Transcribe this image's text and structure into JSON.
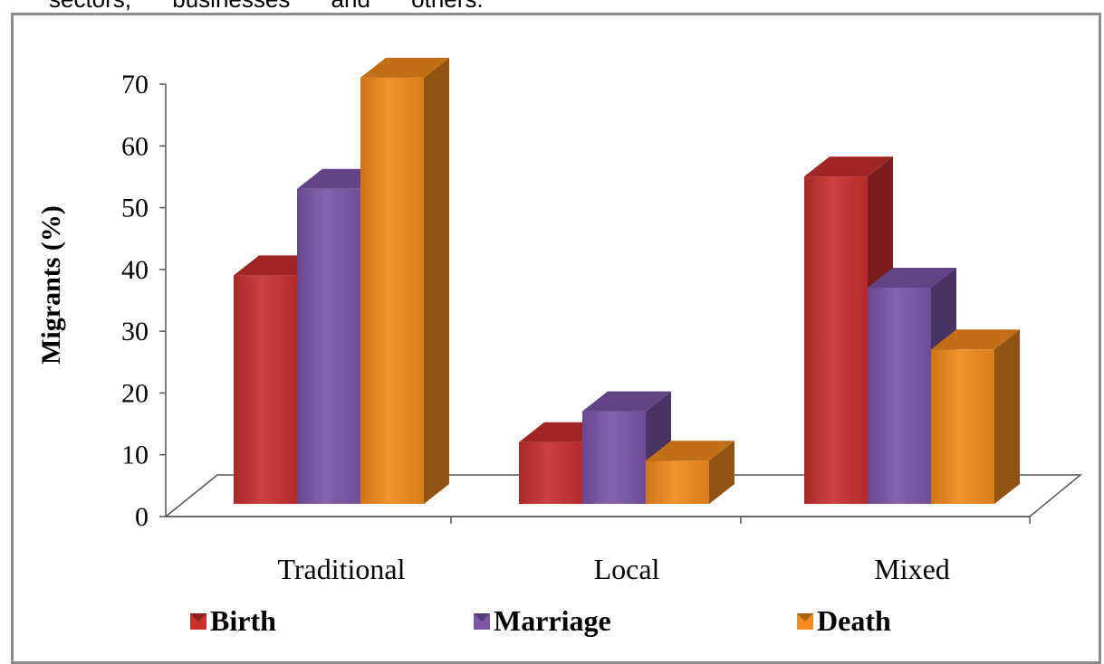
{
  "header": {
    "text": "sectors, businesses and others."
  },
  "chart_data": {
    "type": "bar",
    "categories": [
      "Traditional",
      "Local",
      "Mixed"
    ],
    "series": [
      {
        "name": "Birth",
        "values": [
          37,
          10,
          53
        ],
        "color": "#c8302e"
      },
      {
        "name": "Marriage",
        "values": [
          51,
          15,
          35
        ],
        "color": "#7a55a8"
      },
      {
        "name": "Death",
        "values": [
          69,
          7,
          25
        ],
        "color": "#f28a1c"
      }
    ],
    "ylabel": "Migrants (%)",
    "xlabel": "",
    "ylim": [
      0,
      70
    ],
    "yticks": [
      "0",
      "10",
      "20",
      "30",
      "40",
      "50",
      "60",
      "70"
    ],
    "legend_position": "bottom",
    "grid": false,
    "style": "3d-column"
  }
}
